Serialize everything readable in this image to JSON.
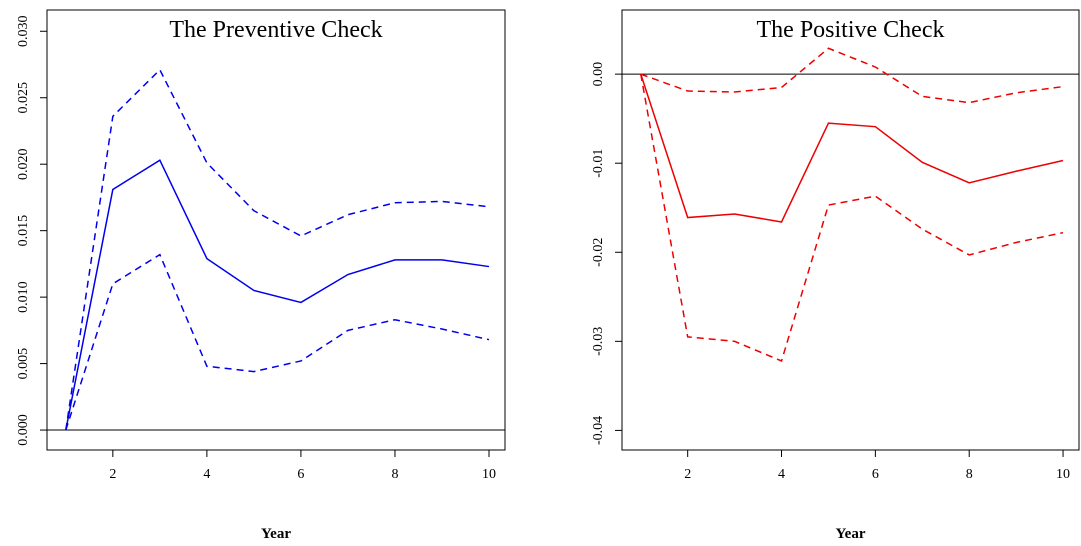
{
  "chart_data": [
    {
      "type": "line",
      "title": "The Preventive Check",
      "x_label": "Year",
      "x": [
        1,
        2,
        3,
        4,
        5,
        6,
        7,
        8,
        9,
        10
      ],
      "xlim": [
        0.6,
        10.34
      ],
      "xticks": [
        2,
        4,
        6,
        8,
        10
      ],
      "ylim": [
        -0.0015,
        0.0316
      ],
      "yticks": [
        {
          "value": 0,
          "label": "0.000"
        },
        {
          "value": 0.005,
          "label": "0.005"
        },
        {
          "value": 0.01,
          "label": "0.010"
        },
        {
          "value": 0.015,
          "label": "0.015"
        },
        {
          "value": 0.02,
          "label": "0.020"
        },
        {
          "value": 0.025,
          "label": "0.025"
        },
        {
          "value": 0.03,
          "label": "0.030"
        }
      ],
      "hline": 0,
      "series": [
        {
          "color": "#0000ee",
          "dashed": false,
          "values": [
            0,
            0.0181,
            0.0203,
            0.0129,
            0.0105,
            0.0096,
            0.0117,
            0.0128,
            0.0128,
            0.0123
          ]
        },
        {
          "color": "#0000ee",
          "dashed": true,
          "values": [
            0,
            0.0236,
            0.0271,
            0.0201,
            0.0165,
            0.0146,
            0.0162,
            0.0171,
            0.0172,
            0.0168
          ]
        },
        {
          "color": "#0000ee",
          "dashed": true,
          "values": [
            0,
            0.011,
            0.0132,
            0.0048,
            0.0044,
            0.0052,
            0.0075,
            0.0083,
            0.0076,
            0.0068
          ]
        }
      ]
    },
    {
      "type": "line",
      "title": "The Positive Check",
      "x_label": "Year",
      "x": [
        1,
        2,
        3,
        4,
        5,
        6,
        7,
        8,
        9,
        10
      ],
      "xlim": [
        0.6,
        10.34
      ],
      "xticks": [
        2,
        4,
        6,
        8,
        10
      ],
      "ylim": [
        -0.0422,
        0.0072
      ],
      "yticks": [
        {
          "value": -0.04,
          "label": "-0.04"
        },
        {
          "value": -0.03,
          "label": "-0.03"
        },
        {
          "value": -0.02,
          "label": "-0.02"
        },
        {
          "value": -0.01,
          "label": "-0.01"
        },
        {
          "value": 0,
          "label": "0.00"
        }
      ],
      "hline": 0,
      "series": [
        {
          "color": "#ee0000",
          "dashed": false,
          "values": [
            0,
            -0.0161,
            -0.0157,
            -0.0166,
            -0.0055,
            -0.0059,
            -0.0099,
            -0.0122,
            -0.0109,
            -0.0097
          ]
        },
        {
          "color": "#ee0000",
          "dashed": true,
          "values": [
            0,
            -0.0019,
            -0.002,
            -0.0015,
            0.0029,
            0.0008,
            -0.0025,
            -0.0032,
            -0.0021,
            -0.0014
          ]
        },
        {
          "color": "#ee0000",
          "dashed": true,
          "values": [
            0,
            -0.0295,
            -0.03,
            -0.0322,
            -0.0147,
            -0.0137,
            -0.0174,
            -0.0203,
            -0.0189,
            -0.0178
          ]
        }
      ]
    }
  ]
}
